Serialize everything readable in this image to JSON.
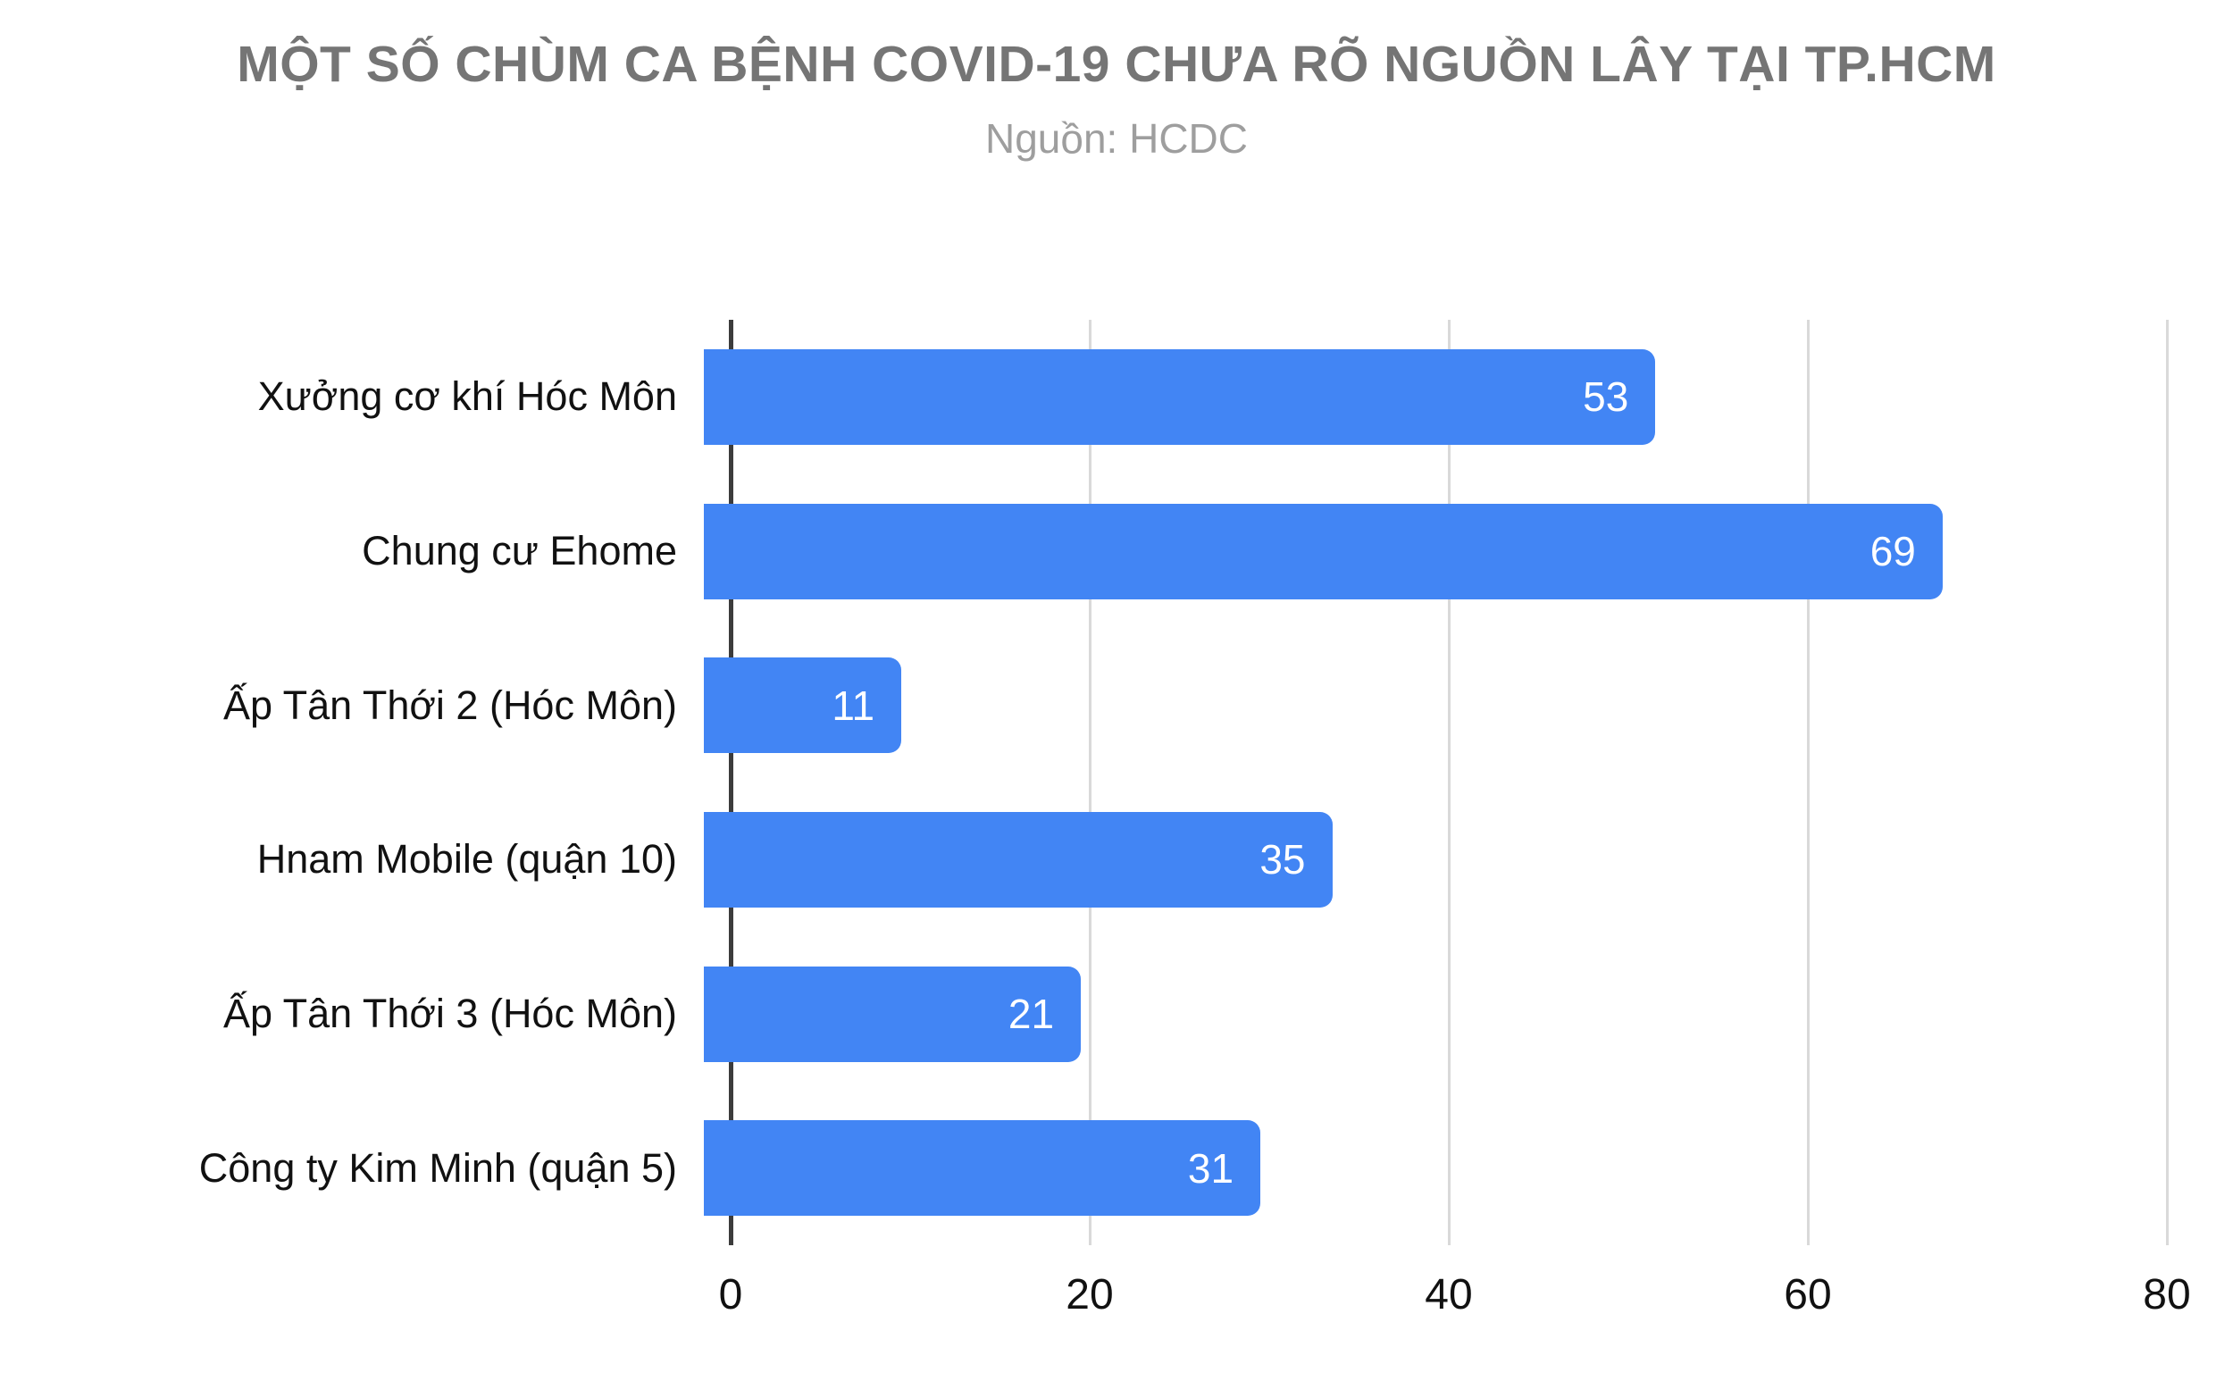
{
  "chart_data": {
    "type": "bar",
    "orientation": "horizontal",
    "title": "MỘT SỐ CHÙM CA BỆNH COVID-19 CHƯA RÕ NGUỒN LÂY TẠI TP.HCM",
    "subtitle": "Nguồn: HCDC",
    "categories": [
      "Xưởng cơ khí Hóc Môn",
      "Chung cư Ehome",
      "Ấp Tân Thới 2 (Hóc Môn)",
      "Hnam Mobile (quận 10)",
      "Ấp Tân Thới 3 (Hóc Môn)",
      "Công ty Kim Minh (quận 5)"
    ],
    "values": [
      53,
      69,
      11,
      35,
      21,
      31
    ],
    "xlabel": "",
    "ylabel": "",
    "xlim": [
      0,
      80
    ],
    "xticks": [
      0,
      20,
      40,
      60,
      80
    ],
    "grid": "vertical-gridlines-on",
    "legend": "none",
    "colors": {
      "bar": "#4285f4",
      "value_label": "#ffffff",
      "title": "#757575",
      "subtitle": "#9e9e9e",
      "axis_text": "#111111",
      "gridline": "#d9d9d9",
      "baseline": "#3c3c3c",
      "background": "#ffffff"
    }
  }
}
